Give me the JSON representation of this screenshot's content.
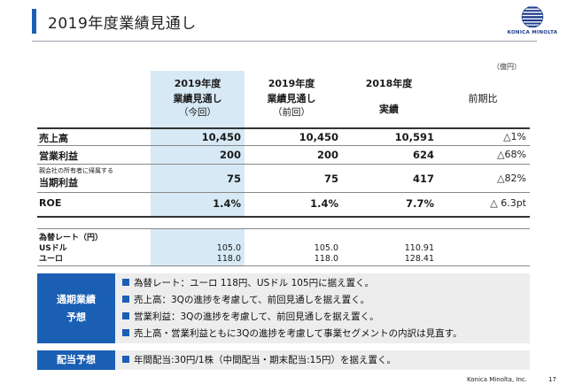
{
  "page": {
    "title": "2019年度業績見通し",
    "unit": "（億円）",
    "logo_text": "KONICA MINOLTA",
    "footer_company": "Konica Minolta, Inc.",
    "page_number": "17",
    "colors": {
      "accent": "#1a5fb4",
      "highlight": "#d6e9f5",
      "box_bg": "#ededed"
    },
    "logo_icon": "globe-icon"
  },
  "table": {
    "headers": [
      {
        "year": "2019年度",
        "line2": "業績見通し",
        "line3": "（今回）"
      },
      {
        "year": "2019年度",
        "line2": "業績見通し",
        "line3": "（前回）"
      },
      {
        "year": "2018年度",
        "line2": "実績",
        "line3": ""
      },
      {
        "year": "",
        "line2": "前期比",
        "line3": ""
      }
    ],
    "rows": [
      {
        "pre": "",
        "label": "売上高",
        "current": "10,450",
        "previous": "10,450",
        "actual": "10,591",
        "change": "△1%"
      },
      {
        "pre": "",
        "label": "営業利益",
        "current": "200",
        "previous": "200",
        "actual": "624",
        "change": "△68%"
      },
      {
        "pre": "親会社の所有者に帰属する",
        "label": "当期利益",
        "current": "75",
        "previous": "75",
        "actual": "417",
        "change": "△82%"
      },
      {
        "pre": "",
        "label": "ROE",
        "current": "1.4%",
        "previous": "1.4%",
        "actual": "7.7%",
        "change": "△ 6.3pt"
      }
    ],
    "fx": {
      "title": "為替レート（円）",
      "rows": [
        {
          "label": "USドル",
          "current": "105.0",
          "previous": "105.0",
          "actual": "110.91"
        },
        {
          "label": "ユーロ",
          "current": "118.0",
          "previous": "118.0",
          "actual": "128.41"
        }
      ]
    }
  },
  "forecast_box": {
    "tag_line1": "通期業績",
    "tag_line2": "予想",
    "lines": [
      "為替レート：ユーロ 118円、USドル 105円に据え置く。",
      "売上高：3Qの進捗を考慮して、前回見通しを据え置く。",
      "営業利益：3Qの進捗を考慮して、前回見通しを据え置く。",
      "売上高・営業利益ともに3Qの進捗を考慮して事業セグメントの内訳は見直す。"
    ]
  },
  "dividend_box": {
    "tag": "配当予想",
    "line": "年間配当:30円/1株（中間配当・期末配当:15円）を据え置く。"
  }
}
